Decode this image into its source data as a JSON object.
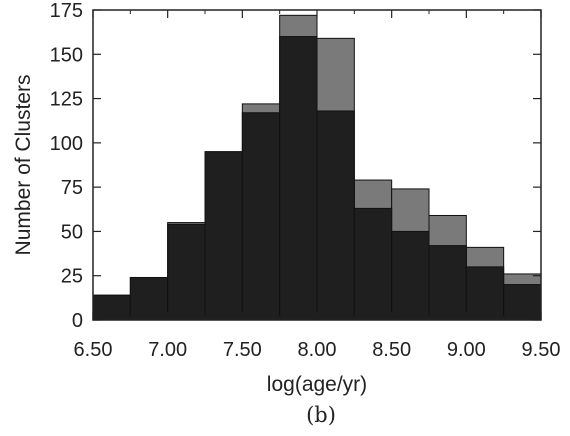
{
  "chart_data": {
    "type": "bar",
    "title": "",
    "xlabel": "log(age/yr)",
    "ylabel": "Number of Clusters",
    "panel_label": "(b)",
    "xlim": [
      6.5,
      9.5
    ],
    "ylim": [
      0,
      175
    ],
    "bin_edges": [
      6.5,
      6.75,
      7.0,
      7.25,
      7.5,
      7.75,
      8.0,
      8.25,
      8.5,
      8.75,
      9.0,
      9.25,
      9.5
    ],
    "x_ticks": [
      6.5,
      7.0,
      7.5,
      8.0,
      8.5,
      9.0,
      9.5
    ],
    "x_tick_labels": [
      "6.50",
      "7.00",
      "7.50",
      "8.00",
      "8.50",
      "9.00",
      "9.50"
    ],
    "y_ticks": [
      0,
      25,
      50,
      75,
      100,
      125,
      150,
      175
    ],
    "y_tick_labels": [
      "0",
      "25",
      "50",
      "75",
      "100",
      "125",
      "150",
      "175"
    ],
    "grid": false,
    "series": [
      {
        "color": "#7a7a7a",
        "values": [
          14,
          24,
          55,
          95,
          122,
          172,
          159,
          79,
          74,
          59,
          41,
          26
        ]
      },
      {
        "color": "#1f1f1f",
        "values": [
          14,
          24,
          54,
          95,
          117,
          160,
          118,
          63,
          50,
          42,
          30,
          20
        ]
      }
    ]
  }
}
